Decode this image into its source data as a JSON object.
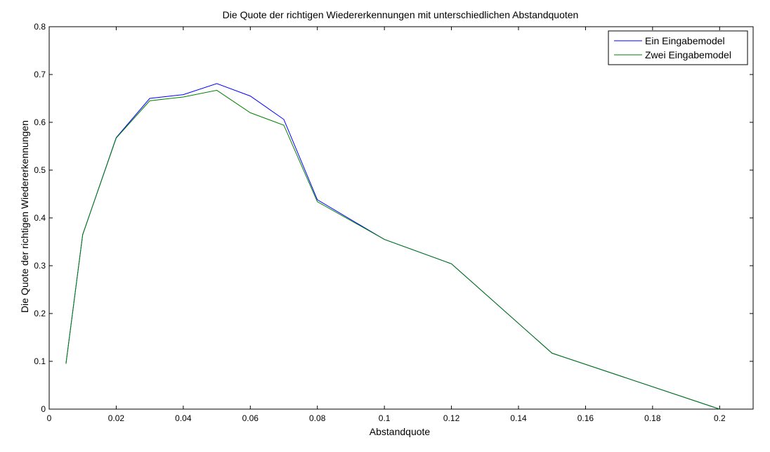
{
  "chart_data": {
    "type": "line",
    "title": "Die Quote der richtigen Wiedererkennungen mit unterschiedlichen Abstandquoten",
    "xlabel": "Abstandquote",
    "ylabel": "Die Quote der richtigen Wiedererkennungen",
    "xlim": [
      0,
      0.21
    ],
    "ylim": [
      0,
      0.8
    ],
    "xticks": [
      "0",
      "0.02",
      "0.04",
      "0.06",
      "0.08",
      "0.1",
      "0.12",
      "0.14",
      "0.16",
      "0.18",
      "0.2"
    ],
    "yticks": [
      "0",
      "0.1",
      "0.2",
      "0.3",
      "0.4",
      "0.5",
      "0.6",
      "0.7",
      "0.8"
    ],
    "grid": false,
    "legend_position": "top-right",
    "series": [
      {
        "name": "Ein Eingabemodel",
        "color": "#0000ff",
        "x": [
          0.005,
          0.01,
          0.02,
          0.03,
          0.04,
          0.05,
          0.06,
          0.07,
          0.08,
          0.1,
          0.12,
          0.15,
          0.2
        ],
        "values": [
          0.095,
          0.365,
          0.568,
          0.65,
          0.658,
          0.681,
          0.655,
          0.606,
          0.438,
          0.355,
          0.304,
          0.117,
          0.0
        ]
      },
      {
        "name": "Zwei Eingabemodel",
        "color": "#008000",
        "x": [
          0.005,
          0.01,
          0.02,
          0.03,
          0.04,
          0.05,
          0.06,
          0.07,
          0.08,
          0.1,
          0.12,
          0.15,
          0.2
        ],
        "values": [
          0.095,
          0.365,
          0.567,
          0.645,
          0.653,
          0.667,
          0.62,
          0.594,
          0.434,
          0.355,
          0.304,
          0.117,
          0.0
        ]
      }
    ]
  }
}
